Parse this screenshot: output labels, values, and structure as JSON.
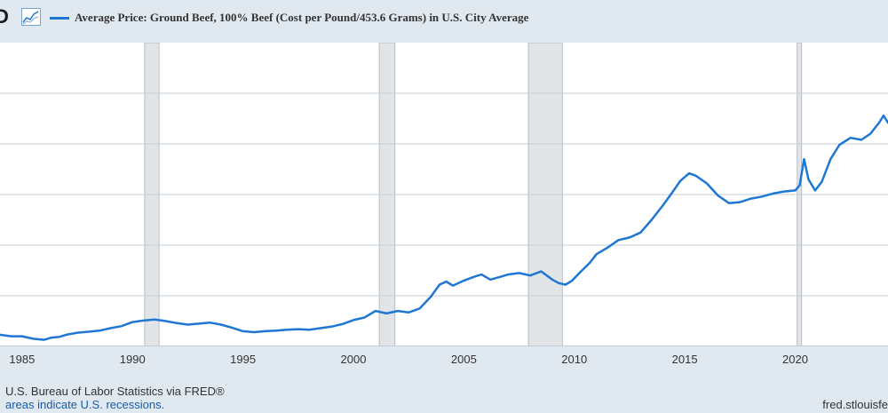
{
  "header": {
    "logo_text": "D",
    "legend_label": "Average Price: Ground Beef, 100% Beef (Cost per Pound/453.6 Grams) in U.S. City Average",
    "series_color": "#1f77d4",
    "icon": "line-chart-icon"
  },
  "footer": {
    "source": "U.S. Bureau of Labor Statistics via FRED®",
    "note": "areas indicate U.S. recessions.",
    "url": "fred.stlouisfe"
  },
  "chart_data": {
    "type": "line",
    "title": "",
    "xlabel": "",
    "ylabel": "",
    "x_ticks": [
      "1985",
      "1990",
      "1995",
      "2000",
      "2005",
      "2010",
      "2015",
      "2020"
    ],
    "xlim": [
      1984.0,
      2024.2
    ],
    "ylim": [
      0.8,
      6.8
    ],
    "y_gridlines": [
      1.8,
      2.8,
      3.8,
      4.8,
      5.8
    ],
    "grid": true,
    "recessions": [
      [
        1990.55,
        1991.2
      ],
      [
        2001.17,
        2001.88
      ],
      [
        2007.92,
        2009.46
      ],
      [
        2020.09,
        2020.29
      ]
    ],
    "series": [
      {
        "name": "Average Price: Ground Beef, 100% Beef (Cost per Pound/453.6 Grams) in U.S. City Average",
        "color": "#1f77d4",
        "x": [
          1984.0,
          1984.5,
          1985.0,
          1985.5,
          1986.0,
          1986.3,
          1986.7,
          1987.0,
          1987.5,
          1988.0,
          1988.5,
          1989.0,
          1989.5,
          1990.0,
          1990.5,
          1991.0,
          1991.5,
          1992.0,
          1992.5,
          1993.0,
          1993.5,
          1994.0,
          1994.5,
          1995.0,
          1995.5,
          1996.0,
          1996.5,
          1997.0,
          1997.5,
          1998.0,
          1998.5,
          1999.0,
          1999.5,
          2000.0,
          2000.5,
          2001.0,
          2001.5,
          2002.0,
          2002.5,
          2003.0,
          2003.5,
          2003.9,
          2004.2,
          2004.5,
          2005.0,
          2005.5,
          2005.8,
          2006.2,
          2006.7,
          2007.0,
          2007.5,
          2008.0,
          2008.5,
          2009.0,
          2009.3,
          2009.6,
          2009.9,
          2010.3,
          2010.7,
          2011.0,
          2011.5,
          2012.0,
          2012.5,
          2013.0,
          2013.5,
          2014.0,
          2014.4,
          2014.8,
          2015.2,
          2015.5,
          2016.0,
          2016.5,
          2017.0,
          2017.5,
          2018.0,
          2018.5,
          2019.0,
          2019.5,
          2020.0,
          2020.2,
          2020.4,
          2020.6,
          2020.9,
          2021.2,
          2021.6,
          2022.0,
          2022.5,
          2023.0,
          2023.4,
          2023.8,
          2024.0,
          2024.2
        ],
        "y": [
          1.03,
          1.0,
          1.0,
          0.95,
          0.93,
          0.97,
          0.99,
          1.03,
          1.07,
          1.09,
          1.11,
          1.16,
          1.2,
          1.28,
          1.31,
          1.33,
          1.3,
          1.26,
          1.23,
          1.25,
          1.27,
          1.23,
          1.17,
          1.1,
          1.08,
          1.1,
          1.11,
          1.13,
          1.14,
          1.13,
          1.16,
          1.19,
          1.24,
          1.32,
          1.37,
          1.5,
          1.45,
          1.5,
          1.47,
          1.55,
          1.78,
          2.02,
          2.08,
          2.0,
          2.1,
          2.18,
          2.22,
          2.12,
          2.18,
          2.22,
          2.25,
          2.2,
          2.28,
          2.12,
          2.05,
          2.02,
          2.1,
          2.28,
          2.45,
          2.62,
          2.75,
          2.9,
          2.95,
          3.05,
          3.3,
          3.58,
          3.82,
          4.07,
          4.22,
          4.17,
          4.02,
          3.78,
          3.63,
          3.65,
          3.72,
          3.76,
          3.82,
          3.86,
          3.88,
          3.98,
          4.5,
          4.1,
          3.88,
          4.05,
          4.5,
          4.78,
          4.92,
          4.88,
          5.0,
          5.22,
          5.36,
          5.22
        ]
      }
    ]
  }
}
